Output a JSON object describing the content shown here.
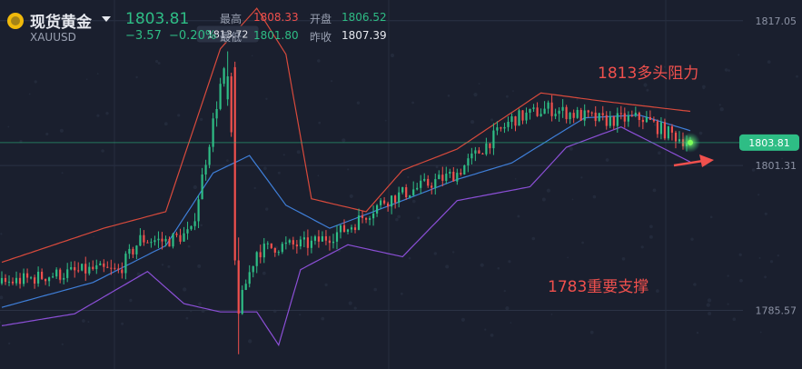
{
  "header": {
    "name": "现货黄金",
    "symbol": "XAUUSD",
    "price": "1803.81",
    "change": "−3.57",
    "change_pct": "−0.20%",
    "high_label": "最高",
    "high": "1808.33",
    "low_label": "最低",
    "low": "1801.80",
    "open_label": "开盘",
    "open": "1806.52",
    "prev_close_label": "昨收",
    "prev_close": "1807.39"
  },
  "colors": {
    "up": "#2ebd85",
    "down": "#f0504d",
    "background": "#1a1f2e"
  },
  "annotations": {
    "resistance": "1813多头阻力",
    "support": "1783重要支撑"
  },
  "chart_data": {
    "type": "candlestick",
    "y_ticks": [
      "1817.05",
      "1801.31",
      "1785.57"
    ],
    "ylim": [
      1779.2,
      1819.3
    ],
    "current_price_label": "1803.81",
    "current_price": 1803.81,
    "peak_label": "1813.72",
    "peak_value": 1813.72,
    "candle_count": 190,
    "candle_anchors": [
      [
        0,
        1788.5
      ],
      [
        12,
        1789.3
      ],
      [
        25,
        1790.0
      ],
      [
        32,
        1789.8
      ],
      [
        38,
        1793.3
      ],
      [
        45,
        1793.1
      ],
      [
        52,
        1794.0
      ],
      [
        56,
        1802.0
      ],
      [
        60,
        1810.0
      ],
      [
        62,
        1812.5
      ],
      [
        64,
        1795.8
      ],
      [
        65,
        1785.5
      ],
      [
        67,
        1788.5
      ],
      [
        70,
        1792.0
      ],
      [
        75,
        1792.5
      ],
      [
        85,
        1792.8
      ],
      [
        95,
        1794.5
      ],
      [
        105,
        1797.5
      ],
      [
        115,
        1799.0
      ],
      [
        125,
        1800.5
      ],
      [
        140,
        1806.3
      ],
      [
        150,
        1807.5
      ],
      [
        165,
        1806.2
      ],
      [
        176,
        1806.5
      ],
      [
        182,
        1805.0
      ],
      [
        189,
        1803.8
      ]
    ],
    "bollinger": {
      "upper": [
        [
          0,
          1790.8
        ],
        [
          28,
          1794.5
        ],
        [
          45,
          1796.3
        ],
        [
          60,
          1814.0
        ],
        [
          70,
          1818.4
        ],
        [
          78,
          1813.4
        ],
        [
          85,
          1797.7
        ],
        [
          100,
          1796.3
        ],
        [
          110,
          1800.8
        ],
        [
          125,
          1803.1
        ],
        [
          148,
          1809.2
        ],
        [
          165,
          1808.3
        ],
        [
          189,
          1807.2
        ]
      ],
      "middle": [
        [
          0,
          1785.9
        ],
        [
          25,
          1788.6
        ],
        [
          45,
          1792.6
        ],
        [
          58,
          1800.5
        ],
        [
          68,
          1802.4
        ],
        [
          78,
          1797.0
        ],
        [
          90,
          1794.5
        ],
        [
          110,
          1797.5
        ],
        [
          125,
          1799.8
        ],
        [
          140,
          1801.6
        ],
        [
          160,
          1806.5
        ],
        [
          175,
          1806.8
        ],
        [
          189,
          1805.1
        ]
      ],
      "lower": [
        [
          0,
          1783.9
        ],
        [
          20,
          1785.2
        ],
        [
          40,
          1789.8
        ],
        [
          50,
          1786.3
        ],
        [
          60,
          1785.4
        ],
        [
          70,
          1785.4
        ],
        [
          76,
          1781.8
        ],
        [
          82,
          1790.0
        ],
        [
          95,
          1792.7
        ],
        [
          110,
          1791.4
        ],
        [
          125,
          1797.5
        ],
        [
          145,
          1799.0
        ],
        [
          155,
          1803.3
        ],
        [
          170,
          1805.5
        ],
        [
          189,
          1801.7
        ]
      ]
    },
    "grid": true
  }
}
